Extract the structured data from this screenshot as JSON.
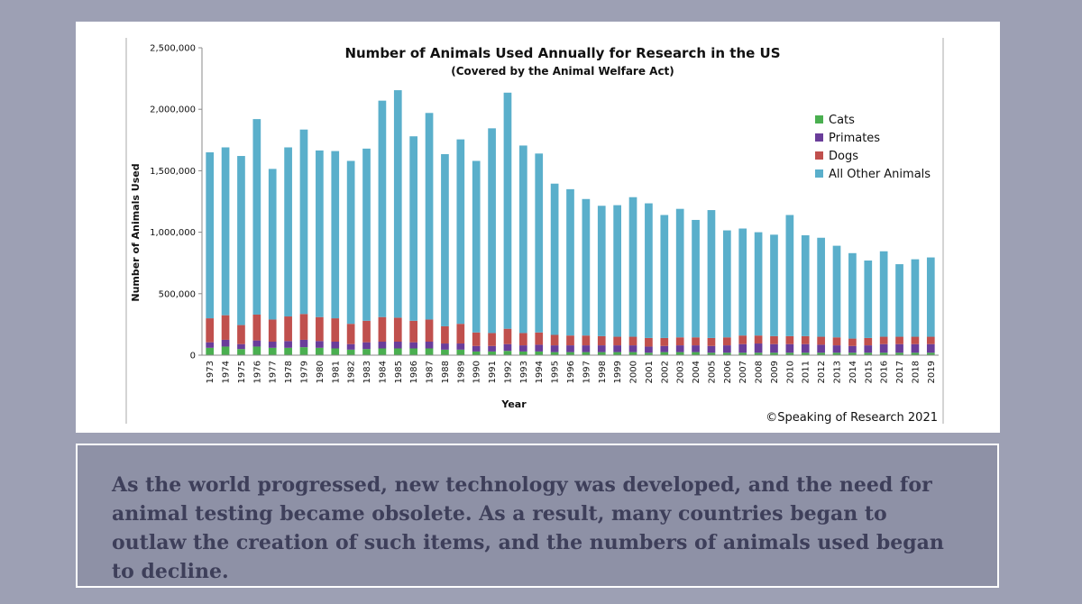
{
  "chart_data": {
    "type": "bar",
    "stacked": true,
    "title": "Number of Animals Used Annually for Research in the US",
    "subtitle": "(Covered by the Animal Welfare Act)",
    "xlabel": "Year",
    "ylabel": "Number of Animals Used",
    "ylim": [
      0,
      2500000
    ],
    "yticks": [
      0,
      500000,
      1000000,
      1500000,
      2000000,
      2500000
    ],
    "ytick_labels": [
      "0",
      "500,000",
      "1,000,000",
      "1,500,000",
      "2,000,000",
      "2,500,000"
    ],
    "grid": false,
    "legend_position": "right",
    "categories": [
      "1973",
      "1974",
      "1975",
      "1976",
      "1977",
      "1978",
      "1979",
      "1980",
      "1981",
      "1982",
      "1983",
      "1984",
      "1985",
      "1986",
      "1987",
      "1988",
      "1989",
      "1990",
      "1991",
      "1992",
      "1993",
      "1994",
      "1995",
      "1996",
      "1997",
      "1998",
      "1999",
      "2000",
      "2001",
      "2002",
      "2003",
      "2004",
      "2005",
      "2006",
      "2007",
      "2008",
      "2009",
      "2010",
      "2011",
      "2012",
      "2013",
      "2014",
      "2015",
      "2016",
      "2017",
      "2018",
      "2019"
    ],
    "series": [
      {
        "name": "Cats",
        "color": "#4aaf50",
        "values": [
          60000,
          70000,
          50000,
          70000,
          60000,
          60000,
          65000,
          60000,
          55000,
          45000,
          50000,
          55000,
          55000,
          55000,
          55000,
          45000,
          45000,
          30000,
          30000,
          35000,
          30000,
          30000,
          25000,
          25000,
          25000,
          25000,
          25000,
          25000,
          20000,
          25000,
          25000,
          25000,
          20000,
          20000,
          20000,
          20000,
          20000,
          20000,
          20000,
          20000,
          20000,
          20000,
          20000,
          20000,
          20000,
          20000,
          20000
        ]
      },
      {
        "name": "Primates",
        "color": "#6a3d9a",
        "values": [
          45000,
          55000,
          40000,
          50000,
          50000,
          55000,
          60000,
          55000,
          55000,
          45000,
          55000,
          55000,
          55000,
          50000,
          55000,
          50000,
          50000,
          45000,
          45000,
          55000,
          50000,
          55000,
          55000,
          55000,
          55000,
          55000,
          55000,
          55000,
          50000,
          50000,
          55000,
          55000,
          55000,
          60000,
          70000,
          75000,
          70000,
          70000,
          70000,
          65000,
          60000,
          55000,
          60000,
          70000,
          70000,
          70000,
          70000
        ]
      },
      {
        "name": "Dogs",
        "color": "#c0504d",
        "values": [
          195000,
          200000,
          155000,
          210000,
          180000,
          200000,
          210000,
          195000,
          190000,
          165000,
          175000,
          200000,
          195000,
          175000,
          180000,
          140000,
          160000,
          110000,
          105000,
          125000,
          100000,
          100000,
          85000,
          80000,
          80000,
          75000,
          70000,
          70000,
          70000,
          65000,
          65000,
          65000,
          65000,
          65000,
          70000,
          65000,
          65000,
          65000,
          65000,
          65000,
          65000,
          60000,
          60000,
          60000,
          60000,
          60000,
          60000
        ]
      },
      {
        "name": "All Other Animals",
        "color": "#5aafcb",
        "values": [
          1350000,
          1365000,
          1375000,
          1590000,
          1225000,
          1375000,
          1500000,
          1355000,
          1360000,
          1325000,
          1400000,
          1760000,
          1850000,
          1500000,
          1680000,
          1400000,
          1500000,
          1395000,
          1665000,
          1920000,
          1525000,
          1455000,
          1230000,
          1190000,
          1110000,
          1060000,
          1070000,
          1135000,
          1095000,
          1000000,
          1045000,
          955000,
          1040000,
          870000,
          870000,
          840000,
          825000,
          985000,
          820000,
          805000,
          745000,
          695000,
          630000,
          695000,
          590000,
          630000,
          645000
        ]
      }
    ]
  },
  "copyright": "©Speaking of Research 2021",
  "caption": "As the world progressed, new technology was developed, and the need for animal testing became obsolete. As a result, many countries began to outlaw the creation of such items, and the numbers of animals used began to decline."
}
